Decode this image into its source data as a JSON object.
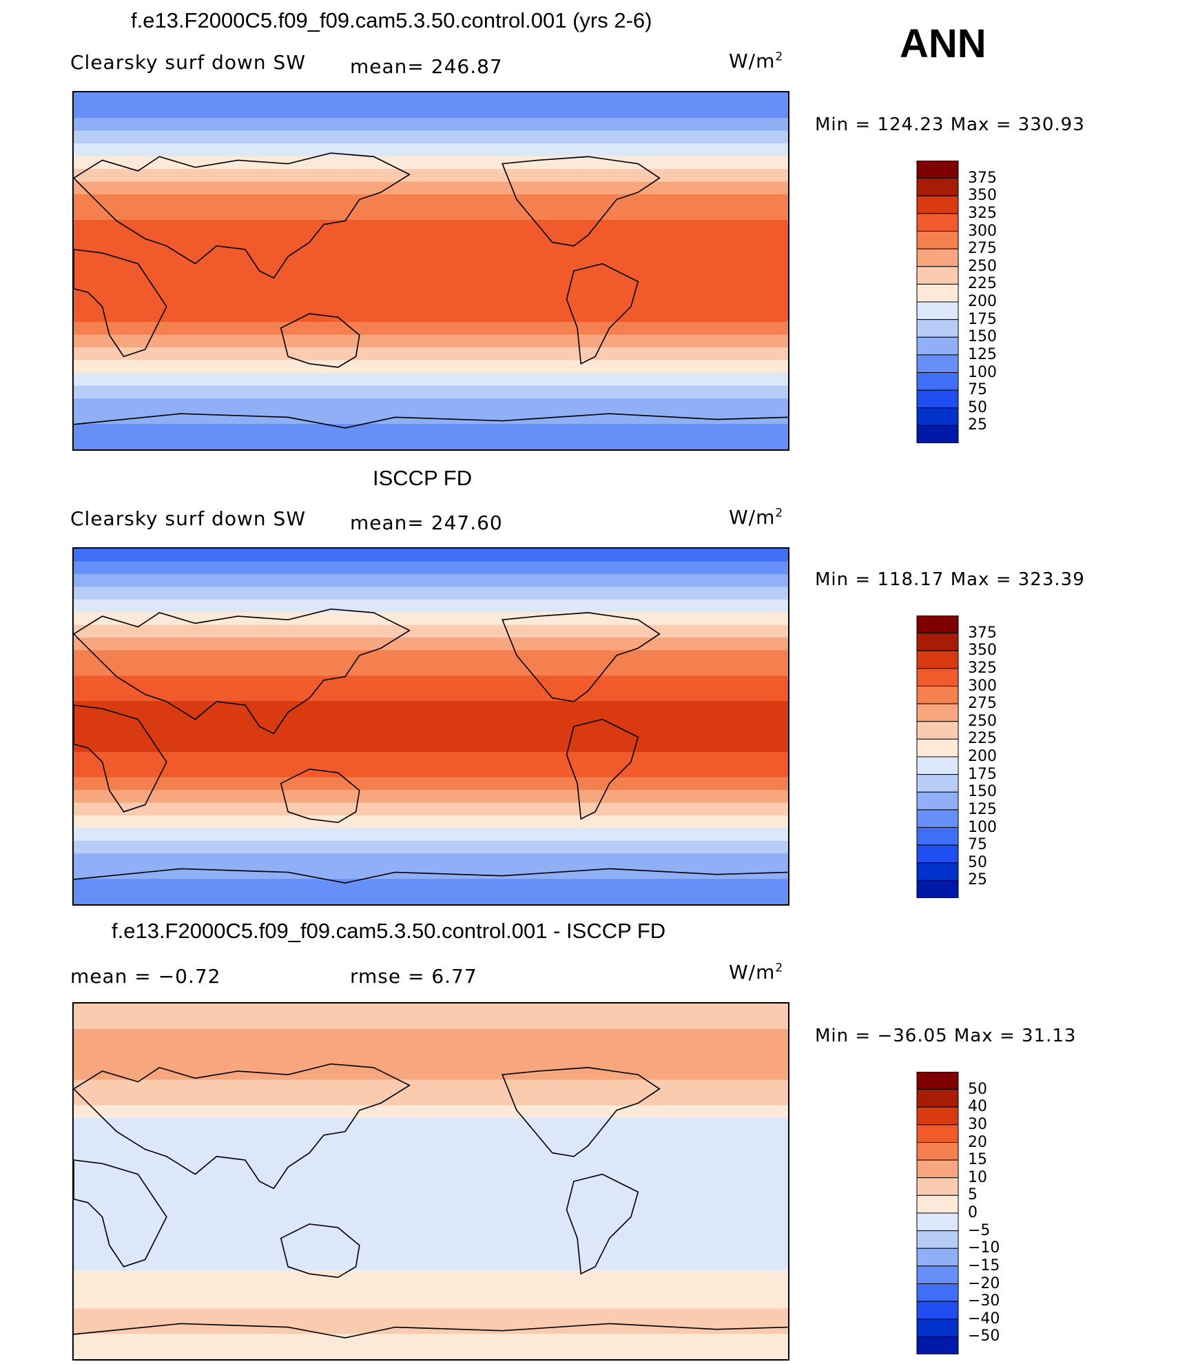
{
  "season": "ANN",
  "colors": {
    "abs_scale": [
      "#00007f",
      "#0019a8",
      "#0033cc",
      "#1f4ff2",
      "#3f6ff7",
      "#6690f7",
      "#8fb0f7",
      "#b7cdf7",
      "#dce8fa",
      "#fde9d8",
      "#fbcbb0",
      "#f8a67d",
      "#f5804f",
      "#f15a2a",
      "#d93a10",
      "#a81c05",
      "#7f0000"
    ],
    "diff_scale": [
      "#00007f",
      "#0019a8",
      "#0033cc",
      "#1f4ff2",
      "#3f6ff7",
      "#6690f7",
      "#8fb0f7",
      "#b7cdf7",
      "#dce8fa",
      "#fde9d8",
      "#fbcbb0",
      "#f8a67d",
      "#f5804f",
      "#f15a2a",
      "#d93a10",
      "#a81c05",
      "#7f0000"
    ]
  },
  "panels": [
    {
      "title": "f.e13.F2000C5.f09_f09.cam5.3.50.control.001 (yrs 2-6)",
      "variable": "Clearsky surf down SW",
      "stat1": "mean=  246.87",
      "units": "W/m",
      "units_sup": "2",
      "minmax": "Min  =  124.23  Max  =  330.93",
      "colorbar_labels": [
        "375",
        "350",
        "325",
        "300",
        "275",
        "250",
        "225",
        "200",
        "175",
        "150",
        "125",
        "100",
        "75",
        "50",
        "25"
      ],
      "zonal_levels": [
        5,
        5,
        6,
        7,
        8,
        9,
        10,
        11,
        12,
        12,
        13,
        13,
        13,
        13,
        13,
        13,
        13,
        13,
        12,
        11,
        10,
        9,
        8,
        7,
        6,
        6,
        5,
        5
      ]
    },
    {
      "title": "ISCCP FD",
      "variable": "Clearsky surf down SW",
      "stat1": "mean=  247.60",
      "units": "W/m",
      "units_sup": "2",
      "minmax": "Min  =  118.17  Max  =  323.39",
      "colorbar_labels": [
        "375",
        "350",
        "325",
        "300",
        "275",
        "250",
        "225",
        "200",
        "175",
        "150",
        "125",
        "100",
        "75",
        "50",
        "25"
      ],
      "zonal_levels": [
        4,
        5,
        6,
        7,
        8,
        9,
        10,
        11,
        12,
        12,
        13,
        13,
        14,
        14,
        14,
        14,
        13,
        13,
        12,
        11,
        10,
        9,
        8,
        7,
        6,
        6,
        5,
        5
      ]
    },
    {
      "title": "f.e13.F2000C5.f09_f09.cam5.3.50.control.001 - ISCCP FD",
      "variable": "mean  =    −0.72",
      "stat1": "rmse  =     6.77",
      "units": "W/m",
      "units_sup": "2",
      "minmax": "Min  =  −36.05  Max  =    31.13",
      "colorbar_labels": [
        "50",
        "40",
        "30",
        "20",
        "15",
        "10",
        "5",
        "0",
        "−5",
        "−10",
        "−15",
        "−20",
        "−30",
        "−40",
        "−50"
      ],
      "zonal_levels": [
        10,
        10,
        11,
        11,
        11,
        11,
        10,
        10,
        9,
        8,
        8,
        8,
        8,
        8,
        8,
        8,
        8,
        8,
        8,
        8,
        8,
        9,
        9,
        9,
        10,
        10,
        9,
        9
      ]
    }
  ]
}
